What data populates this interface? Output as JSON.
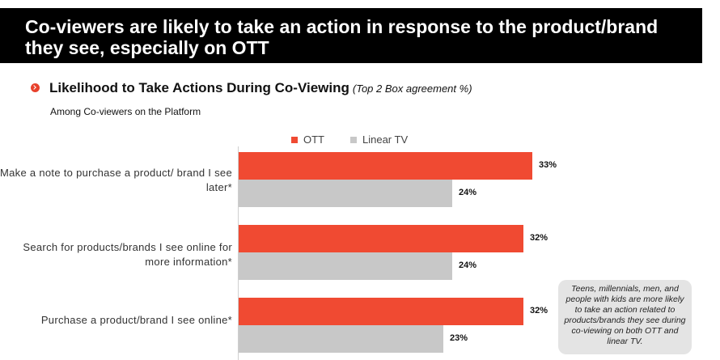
{
  "header": {
    "title": "Co-viewers are likely to take an action in response to the product/brand they see, especially on OTT"
  },
  "section": {
    "title": "Likelihood to Take Actions During Co-Viewing",
    "note": "(Top 2 Box agreement %)",
    "subtitle": "Among Co-viewers on the Platform"
  },
  "callout": {
    "text": "Teens, millennials, men, and people with kids are more likely to take an action related to  products/brands they see during co-viewing on both OTT and linear TV."
  },
  "colors": {
    "ott": "#f04a32",
    "linear": "#c8c8c8"
  },
  "chart_data": {
    "type": "bar",
    "orientation": "horizontal",
    "categories": [
      "Make a note to purchase a product/ brand I see later*",
      "Search for products/brands I see online for more information*",
      "Purchase a product/brand I see online*"
    ],
    "series": [
      {
        "name": "OTT",
        "values": [
          33,
          32,
          32
        ],
        "labels": [
          "33%",
          "32%",
          "32%"
        ]
      },
      {
        "name": "Linear TV",
        "values": [
          24,
          24,
          23
        ],
        "labels": [
          "24%",
          "24%",
          "23%"
        ]
      }
    ],
    "title": "Likelihood to Take Actions During Co-Viewing",
    "unit": "%",
    "legend": "top",
    "grid": false
  }
}
